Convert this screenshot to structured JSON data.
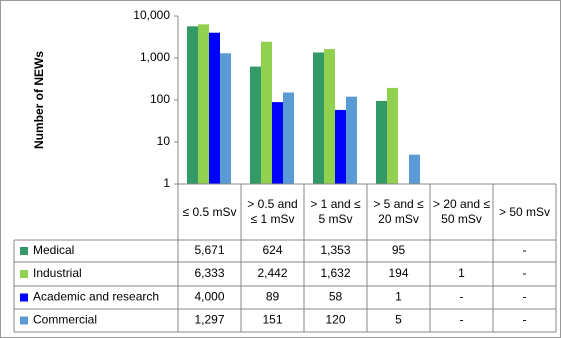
{
  "chart_data": {
    "type": "bar",
    "ylabel": "Number of NEWs",
    "log_scale": true,
    "grid": false,
    "categories": [
      "≤ 0.5 mSv",
      "> 0.5 and ≤ 1 mSv",
      "> 1 and ≤ 5 mSv",
      "> 5 and ≤ 20 mSv",
      "> 20 and ≤ 50 mSv",
      "> 50 mSv"
    ],
    "series": [
      {
        "name": "Medical",
        "color": "#339966",
        "values": [
          5671,
          624,
          1353,
          95,
          null,
          null
        ],
        "value_labels": [
          "5,671",
          "624",
          "1,353",
          "95",
          null,
          "-"
        ]
      },
      {
        "name": "Industrial",
        "color": "#92d050",
        "values": [
          6333,
          2442,
          1632,
          194,
          1,
          null
        ],
        "value_labels": [
          "6,333",
          "2,442",
          "1,632",
          "194",
          "1",
          "-"
        ]
      },
      {
        "name": "Academic and research",
        "color": "#0000ff",
        "values": [
          4000,
          89,
          58,
          1,
          null,
          null
        ],
        "value_labels": [
          "4,000",
          "89",
          "58",
          "1",
          "-",
          "-"
        ]
      },
      {
        "name": "Commercial",
        "color": "#5b9bd5",
        "values": [
          1297,
          151,
          120,
          5,
          null,
          null
        ],
        "value_labels": [
          "1,297",
          "151",
          "120",
          "5",
          "-",
          "-"
        ]
      }
    ],
    "ylim": [
      1,
      10000
    ],
    "yticks": [
      1,
      10,
      100,
      {
        "value": 1000,
        "label": "1,000"
      },
      {
        "value": 10000,
        "label": "10,000"
      }
    ]
  }
}
